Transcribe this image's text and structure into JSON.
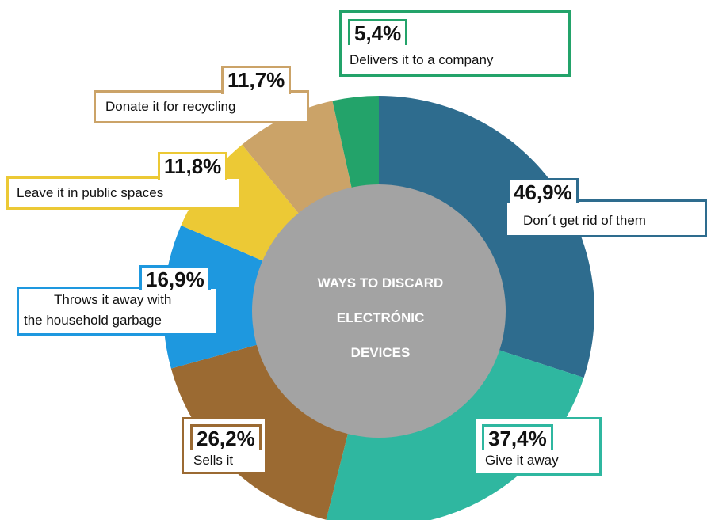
{
  "chart_data": {
    "type": "pie",
    "style": "donut",
    "center_title_lines": [
      "WAYS TO DISCARD",
      "ELECTRÓNIC",
      "DEVICES"
    ],
    "categories": [
      "Don´t get rid of them",
      "Give it away",
      "Sells it",
      "Throws it away with the household garbage",
      "Leave it in public spaces",
      "Donate it for recycling",
      "Delivers it to a company"
    ],
    "values": [
      46.9,
      37.4,
      26.2,
      16.9,
      11.8,
      11.7,
      5.4
    ],
    "value_labels": [
      "46,9%",
      "37,4%",
      "26,2%",
      "16,9%",
      "11,8%",
      "11,7%",
      "5,4%"
    ],
    "colors": [
      "#2e6c8e",
      "#2fb7a0",
      "#9b6a32",
      "#1e98df",
      "#ecc935",
      "#cba368",
      "#23a36a"
    ],
    "center_color": "#a3a3a3"
  },
  "callouts": [
    {
      "pct": "46,9%",
      "lines": [
        "Don´t get rid of them"
      ],
      "color": "#2e6c8e"
    },
    {
      "pct": "37,4%",
      "lines": [
        "Give it away"
      ],
      "color": "#2fb7a0"
    },
    {
      "pct": "26,2%",
      "lines": [
        "Sells it"
      ],
      "color": "#9b6a32"
    },
    {
      "pct": "16,9%",
      "lines": [
        "Throws it away with",
        "the household garbage"
      ],
      "color": "#1e98df"
    },
    {
      "pct": "11,8%",
      "lines": [
        "Leave it in public spaces"
      ],
      "color": "#ecc935"
    },
    {
      "pct": "11,7%",
      "lines": [
        "Donate it for recycling"
      ],
      "color": "#cba368"
    },
    {
      "pct": "5,4%",
      "lines": [
        "Delivers it to a company"
      ],
      "color": "#23a36a"
    }
  ]
}
